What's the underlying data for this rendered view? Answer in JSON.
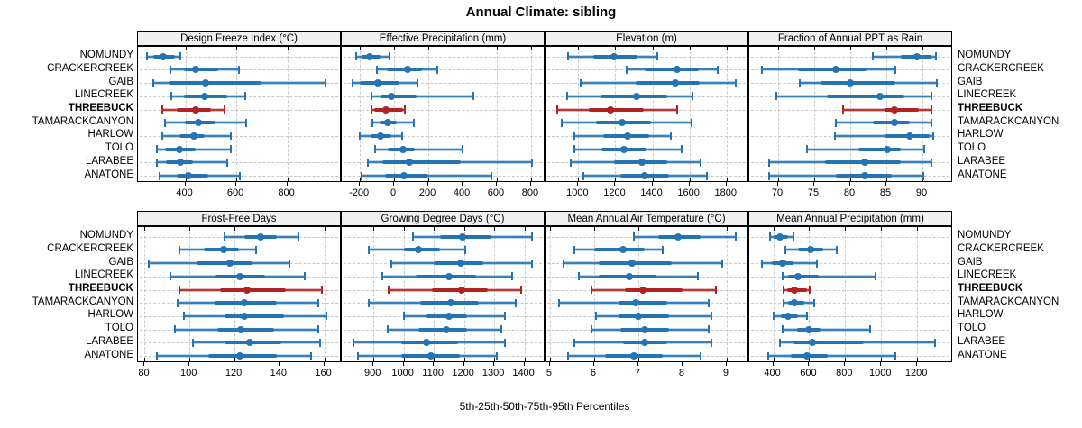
{
  "title": "Annual Climate: sibling",
  "xlabel": "5th-25th-50th-75th-95th Percentiles",
  "highlight_site": "THREEBUCK",
  "sites": [
    "NOMUNDY",
    "CRACKERCREEK",
    "GAIB",
    "LINECREEK",
    "THREEBUCK",
    "TAMARACKCANYON",
    "HARLOW",
    "TOLO",
    "LARABEE",
    "ANATONE"
  ],
  "colors": {
    "series_blue": "#2474b4",
    "series_red": "#b22222",
    "grid": "#c8c8c8",
    "strip_bg": "#f0f0f0",
    "panel_border": "#000000"
  },
  "chart_data": [
    {
      "type": "percentile-dotplot",
      "id": "design-freeze-index",
      "label": "Design Freeze Index (°C)",
      "row": 0,
      "col": 0,
      "xlim": [
        214,
        1007
      ],
      "ticks": [
        400,
        600,
        800
      ],
      "percentiles": [
        5,
        25,
        50,
        75,
        95
      ],
      "series": {
        "NOMUNDY": [
          250,
          275,
          312,
          360,
          380
        ],
        "CRACKERCREEK": [
          340,
          395,
          440,
          530,
          610
        ],
        "GAIB": [
          275,
          335,
          480,
          700,
          950
        ],
        "LINECREEK": [
          345,
          395,
          475,
          565,
          635
        ],
        "THREEBUCK": [
          310,
          365,
          440,
          500,
          555
        ],
        "TAMARACKCANYON": [
          320,
          398,
          452,
          520,
          640
        ],
        "HARLOW": [
          310,
          377,
          435,
          476,
          580
        ],
        "TOLO": [
          290,
          320,
          377,
          440,
          580
        ],
        "LARABEE": [
          290,
          325,
          382,
          430,
          565
        ],
        "ANATONE": [
          298,
          365,
          412,
          490,
          615
        ]
      }
    },
    {
      "type": "percentile-dotplot",
      "id": "effective-precipitation",
      "label": "Effective Precipitation (mm)",
      "row": 0,
      "col": 1,
      "xlim": [
        -306,
        874
      ],
      "ticks": [
        -200,
        0,
        200,
        400,
        600,
        800
      ],
      "percentiles": [
        5,
        25,
        50,
        75,
        95
      ],
      "series": {
        "NOMUNDY": [
          -220,
          -190,
          -143,
          -80,
          -25
        ],
        "CRACKERCREEK": [
          -100,
          -43,
          80,
          165,
          250
        ],
        "GAIB": [
          -245,
          -200,
          -96,
          30,
          135
        ],
        "LINECREEK": [
          -130,
          -78,
          -17,
          130,
          465
        ],
        "THREEBUCK": [
          -130,
          -115,
          -47,
          50,
          65
        ],
        "TAMARACKCANYON": [
          -125,
          -87,
          -38,
          18,
          113
        ],
        "HARLOW": [
          -203,
          -139,
          -78,
          -17,
          49
        ],
        "TOLO": [
          -110,
          -35,
          52,
          122,
          400
        ],
        "LARABEE": [
          -151,
          -70,
          87,
          390,
          805
        ],
        "ANATONE": [
          -191,
          -52,
          58,
          200,
          570
        ]
      }
    },
    {
      "type": "percentile-dotplot",
      "id": "elevation",
      "label": "Elevation (m)",
      "row": 0,
      "col": 2,
      "xlim": [
        823,
        1913
      ],
      "ticks": [
        1000,
        1200,
        1400,
        1600,
        1800
      ],
      "percentiles": [
        5,
        25,
        50,
        75,
        95
      ],
      "series": {
        "NOMUNDY": [
          945,
          1080,
          1194,
          1320,
          1427
        ],
        "CRACKERCREEK": [
          1260,
          1360,
          1534,
          1650,
          1754
        ],
        "GAIB": [
          1014,
          1312,
          1524,
          1657,
          1850
        ],
        "LINECREEK": [
          939,
          1119,
          1315,
          1481,
          1617
        ],
        "THREEBUCK": [
          886,
          1055,
          1175,
          1352,
          1532
        ],
        "TAMARACKCANYON": [
          913,
          1095,
          1239,
          1392,
          1612
        ],
        "HARLOW": [
          978,
          1135,
          1267,
          1384,
          1497
        ],
        "TOLO": [
          979,
          1127,
          1248,
          1368,
          1556
        ],
        "LARABEE": [
          961,
          1191,
          1344,
          1481,
          1662
        ],
        "ANATONE": [
          1026,
          1228,
          1360,
          1489,
          1693
        ]
      }
    },
    {
      "type": "percentile-dotplot",
      "id": "fraction-annual-ppt-rain",
      "label": "Fraction of Annual PPT as Rain",
      "row": 0,
      "col": 3,
      "xlim": [
        66,
        94
      ],
      "ticks": [
        70,
        75,
        80,
        85,
        90
      ],
      "percentiles": [
        5,
        25,
        50,
        75,
        95
      ],
      "series": {
        "NOMUNDY": [
          83.1,
          87.0,
          89.2,
          91.2,
          91.9
        ],
        "CRACKERCREEK": [
          67.7,
          72.8,
          78.0,
          82.3,
          86.2
        ],
        "GAIB": [
          73.0,
          75.9,
          80.0,
          86.2,
          92.0
        ],
        "LINECREEK": [
          69.8,
          76.8,
          84.1,
          87.5,
          91.2
        ],
        "THREEBUCK": [
          79.0,
          84.8,
          86.1,
          89.5,
          91.2
        ],
        "TAMARACKCANYON": [
          78.0,
          83.1,
          86.1,
          88.3,
          91.2
        ],
        "HARLOW": [
          77.9,
          84.8,
          88.3,
          91.0,
          91.5
        ],
        "TOLO": [
          74.0,
          81.1,
          85.1,
          87.0,
          90.3
        ],
        "LARABEE": [
          68.7,
          76.5,
          82.0,
          87.0,
          91.2
        ],
        "ANATONE": [
          68.7,
          78.0,
          82.0,
          85.8,
          90.1
        ]
      }
    },
    {
      "type": "percentile-dotplot",
      "id": "frost-free-days",
      "label": "Frost-Free Days",
      "row": 1,
      "col": 0,
      "xlim": [
        77,
        167
      ],
      "ticks": [
        80,
        100,
        120,
        140,
        160
      ],
      "percentiles": [
        5,
        25,
        50,
        75,
        95
      ],
      "series": {
        "NOMUNDY": [
          115.5,
          124.5,
          131.5,
          139,
          148.5
        ],
        "CRACKERCREEK": [
          95.5,
          106.5,
          115,
          122,
          129.5
        ],
        "GAIB": [
          82,
          103,
          118,
          128,
          144.5
        ],
        "LINECREEK": [
          91.5,
          111.5,
          122.5,
          133.5,
          151.5
        ],
        "THREEBUCK": [
          95.5,
          113.5,
          125.5,
          143,
          159
        ],
        "TAMARACKCANYON": [
          94.5,
          111,
          124.5,
          139,
          157.5
        ],
        "HARLOW": [
          97.5,
          115.5,
          124.5,
          142,
          161
        ],
        "TOLO": [
          93.5,
          112.5,
          123,
          137.5,
          157.5
        ],
        "LARABEE": [
          101.5,
          115.5,
          127,
          141,
          158
        ],
        "ANATONE": [
          85.5,
          108.5,
          122.5,
          139,
          154
        ]
      }
    },
    {
      "type": "percentile-dotplot",
      "id": "growing-degree-days",
      "label": "Growing Degree Days (°C)",
      "row": 1,
      "col": 1,
      "xlim": [
        795,
        1464
      ],
      "ticks": [
        900,
        1000,
        1100,
        1200,
        1300,
        1400
      ],
      "percentiles": [
        5,
        25,
        50,
        75,
        95
      ],
      "series": {
        "NOMUNDY": [
          1030,
          1120,
          1195,
          1290,
          1425
        ],
        "CRACKERCREEK": [
          885,
          1000,
          1050,
          1120,
          1205
        ],
        "GAIB": [
          960,
          1100,
          1190,
          1265,
          1425
        ],
        "LINECREEK": [
          930,
          1040,
          1150,
          1240,
          1360
        ],
        "THREEBUCK": [
          950,
          1095,
          1193,
          1280,
          1390
        ],
        "TAMARACKCANYON": [
          885,
          1055,
          1155,
          1250,
          1372
        ],
        "HARLOW": [
          1000,
          1077,
          1149,
          1210,
          1336
        ],
        "TOLO": [
          946,
          1050,
          1141,
          1210,
          1323
        ],
        "LARABEE": [
          835,
          993,
          1075,
          1180,
          1335
        ],
        "ANATONE": [
          850,
          993,
          1091,
          1185,
          1308
        ]
      }
    },
    {
      "type": "percentile-dotplot",
      "id": "mean-annual-air-temperature",
      "label": "Mean Annual Air Temperature (°C)",
      "row": 1,
      "col": 2,
      "xlim": [
        4.9,
        9.47
      ],
      "ticks": [
        5,
        6,
        7,
        8,
        9
      ],
      "percentiles": [
        5,
        25,
        50,
        75,
        95
      ],
      "series": {
        "NOMUNDY": [
          6.9,
          7.45,
          7.9,
          8.4,
          9.2
        ],
        "CRACKERCREEK": [
          5.55,
          6.0,
          6.65,
          7.15,
          7.55
        ],
        "GAIB": [
          5.3,
          6.1,
          6.85,
          7.75,
          8.9
        ],
        "LINECREEK": [
          5.65,
          6.1,
          6.8,
          7.4,
          8.35
        ],
        "THREEBUCK": [
          5.95,
          6.7,
          7.1,
          8.0,
          8.75
        ],
        "TAMARACKCANYON": [
          5.2,
          6.55,
          6.95,
          7.65,
          8.6
        ],
        "HARLOW": [
          6.05,
          6.55,
          7.0,
          7.7,
          8.65
        ],
        "TOLO": [
          5.95,
          6.6,
          7.15,
          7.7,
          8.6
        ],
        "LARABEE": [
          5.55,
          6.65,
          7.15,
          7.65,
          8.65
        ],
        "ANATONE": [
          5.4,
          6.25,
          6.9,
          7.55,
          8.4
        ]
      }
    },
    {
      "type": "percentile-dotplot",
      "id": "mean-annual-precipitation",
      "label": "Mean Annual Precipitation (mm)",
      "row": 1,
      "col": 3,
      "xlim": [
        267,
        1390
      ],
      "ticks": [
        400,
        600,
        800,
        1000,
        1200
      ],
      "percentiles": [
        5,
        25,
        50,
        75,
        95
      ],
      "series": {
        "NOMUNDY": [
          380,
          400,
          435,
          485,
          515
        ],
        "CRACKERCREEK": [
          470,
          540,
          607,
          680,
          755
        ],
        "GAIB": [
          335,
          390,
          455,
          515,
          645
        ],
        "LINECREEK": [
          450,
          485,
          540,
          655,
          970
        ],
        "THREEBUCK": [
          460,
          480,
          520,
          590,
          605
        ],
        "TAMARACKCANYON": [
          458,
          483,
          520,
          575,
          628
        ],
        "HARLOW": [
          403,
          441,
          483,
          540,
          590
        ],
        "TOLO": [
          455,
          532,
          600,
          665,
          940
        ],
        "LARABEE": [
          435,
          515,
          620,
          905,
          1300
        ],
        "ANATONE": [
          370,
          500,
          590,
          705,
          1080
        ]
      }
    }
  ]
}
